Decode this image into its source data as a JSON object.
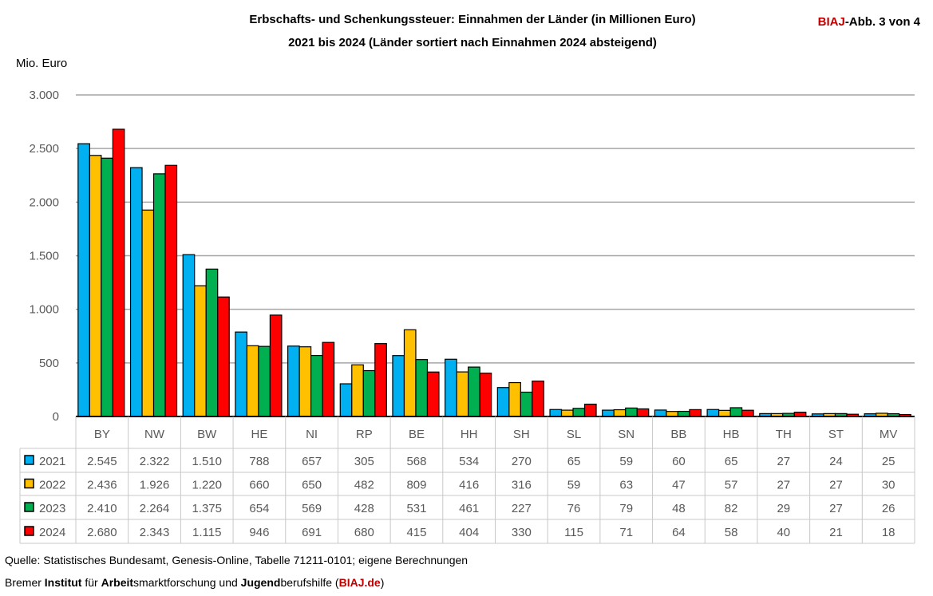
{
  "chart_data": {
    "type": "bar",
    "title": "Erbschafts- und Schenkungssteuer: Einnahmen der Länder (in Millionen Euro)",
    "subtitle": "2021 bis 2024 (Länder sortiert nach Einnahmen 2024 absteigend)",
    "ylabel": "Mio. Euro",
    "ylim": [
      0,
      3000
    ],
    "yticks": [
      0,
      500,
      1000,
      1500,
      2000,
      2500,
      3000
    ],
    "ytick_labels": [
      "0",
      "500",
      "1.000",
      "1.500",
      "2.000",
      "2.500",
      "3.000"
    ],
    "grid": true,
    "legend": "data-table",
    "categories": [
      "BY",
      "NW",
      "BW",
      "HE",
      "NI",
      "RP",
      "BE",
      "HH",
      "SH",
      "SL",
      "SN",
      "BB",
      "HB",
      "TH",
      "ST",
      "MV"
    ],
    "series": [
      {
        "name": "2021",
        "color": "#00B0F0",
        "values": [
          2545,
          2322,
          1510,
          788,
          657,
          305,
          568,
          534,
          270,
          65,
          59,
          60,
          65,
          27,
          24,
          25
        ],
        "labels": [
          "2.545",
          "2.322",
          "1.510",
          "788",
          "657",
          "305",
          "568",
          "534",
          "270",
          "65",
          "59",
          "60",
          "65",
          "27",
          "24",
          "25"
        ]
      },
      {
        "name": "2022",
        "color": "#FFC000",
        "values": [
          2436,
          1926,
          1220,
          660,
          650,
          482,
          809,
          416,
          316,
          59,
          63,
          47,
          57,
          27,
          27,
          30
        ],
        "labels": [
          "2.436",
          "1.926",
          "1.220",
          "660",
          "650",
          "482",
          "809",
          "416",
          "316",
          "59",
          "63",
          "47",
          "57",
          "27",
          "27",
          "30"
        ]
      },
      {
        "name": "2023",
        "color": "#00B050",
        "values": [
          2410,
          2264,
          1375,
          654,
          569,
          428,
          531,
          461,
          227,
          76,
          79,
          48,
          82,
          29,
          27,
          26
        ],
        "labels": [
          "2.410",
          "2.264",
          "1.375",
          "654",
          "569",
          "428",
          "531",
          "461",
          "227",
          "76",
          "79",
          "48",
          "82",
          "29",
          "27",
          "26"
        ]
      },
      {
        "name": "2024",
        "color": "#FF0000",
        "values": [
          2680,
          2343,
          1115,
          946,
          691,
          680,
          415,
          404,
          330,
          115,
          71,
          64,
          58,
          40,
          21,
          18
        ],
        "labels": [
          "2.680",
          "2.343",
          "1.115",
          "946",
          "691",
          "680",
          "415",
          "404",
          "330",
          "115",
          "71",
          "64",
          "58",
          "40",
          "21",
          "18"
        ]
      }
    ]
  },
  "badge": {
    "brand": "BIAJ",
    "rest": "-Abb. 3 von 4",
    "brand_color": "#C00000"
  },
  "footer": {
    "source": "Quelle: Statistisches Bundesamt, Genesis-Online, Tabelle 71211-0101; eigene Berechnungen",
    "inst_parts": [
      {
        "text": "Bremer ",
        "bold": false
      },
      {
        "text": "Institut",
        "bold": true
      },
      {
        "text": " für ",
        "bold": false
      },
      {
        "text": "Arbeit",
        "bold": true
      },
      {
        "text": "smarktforschung und ",
        "bold": false
      },
      {
        "text": "Jugend",
        "bold": true
      },
      {
        "text": "berufshilfe (",
        "bold": false
      },
      {
        "text": "BIAJ.de",
        "bold": true,
        "red": true
      },
      {
        "text": ")",
        "bold": false
      }
    ]
  }
}
